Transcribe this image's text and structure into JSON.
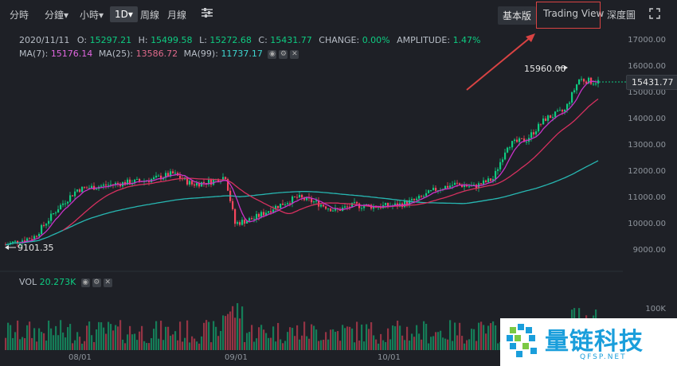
{
  "toolbar": {
    "items": [
      "分時",
      "分鐘▾",
      "小時▾",
      "1D▾",
      "周線",
      "月線"
    ],
    "settings_icon": "settings-sliders-icon",
    "right": [
      "基本版",
      "Trading View",
      "深度圖"
    ],
    "fullscreen_icon": "fullscreen-icon"
  },
  "info": {
    "date": "2020/11/11",
    "open_label": "O:",
    "open": "15297.21",
    "high_label": "H:",
    "high": "15499.58",
    "low_label": "L:",
    "low": "15272.68",
    "close_label": "C:",
    "close": "15431.77",
    "change_label": "CHANGE:",
    "change": "0.00%",
    "amp_label": "AMPLITUDE:",
    "amp": "1.47%",
    "ma7_label": "MA(7):",
    "ma7": "15176.14",
    "ma25_label": "MA(25):",
    "ma25": "13586.72",
    "ma99_label": "MA(99):",
    "ma99": "11737.17"
  },
  "vol": {
    "label": "VOL",
    "value": "20.273K"
  },
  "price_tag": "15431.77",
  "high_marker": "15960.00",
  "low_marker": "9101.35",
  "y_axis": [
    "17000.00",
    "16000.00",
    "15000.00",
    "14000.00",
    "13000.00",
    "12000.00",
    "11000.00",
    "10000.00",
    "9000.00"
  ],
  "vol_axis": "100K",
  "x_axis": [
    "08/01",
    "09/01",
    "10/01"
  ],
  "watermark": {
    "text": "量链科技",
    "sub": "QFSP.NET"
  },
  "colors": {
    "up": "#0ecb81",
    "down": "#f6465d",
    "ma7": "#c832c8",
    "ma25": "#d6305f",
    "ma99": "#27b7b2",
    "highlight": "#d94343"
  }
}
